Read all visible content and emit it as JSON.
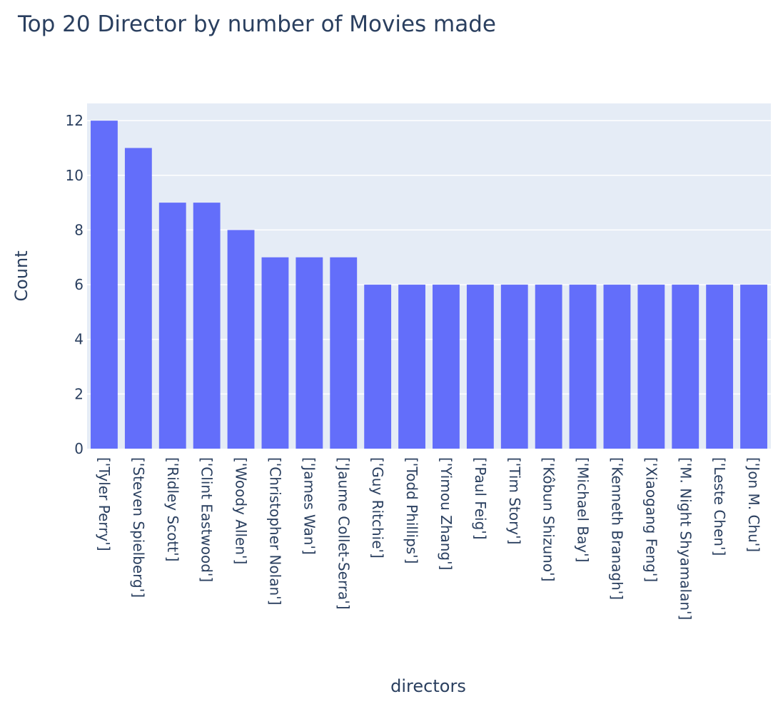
{
  "chart_data": {
    "type": "bar",
    "title": "Top 20 Director by number of Movies made",
    "xlabel": "directors",
    "ylabel": "Count",
    "ylim": [
      0,
      12.63
    ],
    "yticks": [
      "0",
      "2",
      "4",
      "6",
      "8",
      "10",
      "12"
    ],
    "grid": true,
    "legend": "none",
    "categories": [
      "['Tyler Perry']",
      "['Steven Spielberg']",
      "['Ridley Scott']",
      "['Clint Eastwood']",
      "['Woody Allen']",
      "['Christopher Nolan']",
      "['James Wan']",
      "['Jaume Collet-Serra']",
      "['Guy Ritchie']",
      "['Todd Phillips']",
      "['Yimou Zhang']",
      "['Paul Feig']",
      "['Tim Story']",
      "['Kôbun Shizuno']",
      "['Michael Bay']",
      "['Kenneth Branagh']",
      "['Xiaogang Feng']",
      "['M. Night Shyamalan']",
      "['Leste Chen']",
      "['Jon M. Chu']"
    ],
    "values": [
      12,
      11,
      9,
      9,
      8,
      7,
      7,
      7,
      6,
      6,
      6,
      6,
      6,
      6,
      6,
      6,
      6,
      6,
      6,
      6
    ],
    "colors": {
      "bar": "#636efa",
      "plot_bg": "#e5ecf6",
      "grid": "#ffffff",
      "text": "#2a3f5f"
    }
  }
}
